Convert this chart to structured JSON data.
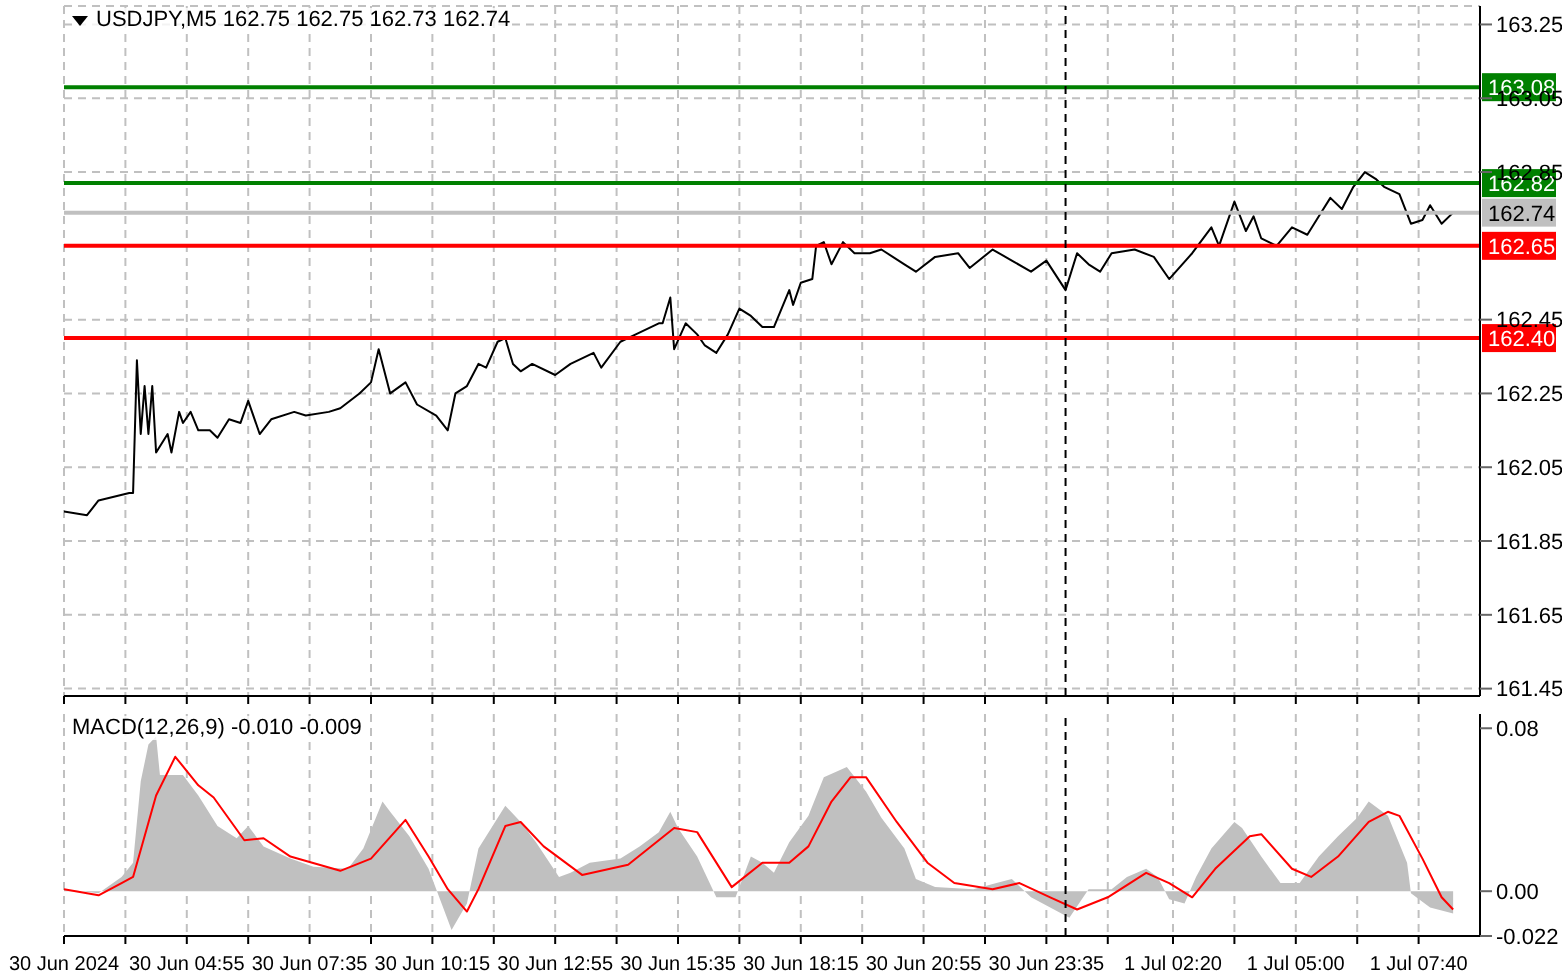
{
  "chart_data": [
    {
      "type": "line",
      "title": "USDJPY,M5 162.75 162.75 162.73 162.74",
      "grid": true,
      "tick_labels": "y",
      "xlim": [
        "2024-06-30T02:15",
        "2024-07-01T09:00"
      ],
      "ylim": [
        161.43,
        163.3
      ],
      "yticks": [
        161.45,
        161.65,
        161.85,
        162.05,
        162.25,
        162.45,
        162.85,
        163.05,
        163.25
      ],
      "xticks": [
        {
          "value": "2024-06-30T02:15",
          "label": null
        },
        {
          "value": "2024-06-30T03:35",
          "label": null
        },
        {
          "value": "2024-06-30T04:55",
          "label": null
        },
        {
          "value": "2024-06-30T06:15",
          "label": null
        },
        {
          "value": "2024-06-30T07:35",
          "label": null
        },
        {
          "value": "2024-06-30T08:55",
          "label": null
        },
        {
          "value": "2024-06-30T10:15",
          "label": null
        },
        {
          "value": "2024-06-30T11:35",
          "label": null
        },
        {
          "value": "2024-06-30T12:55",
          "label": null
        },
        {
          "value": "2024-06-30T14:15",
          "label": null
        },
        {
          "value": "2024-06-30T15:35",
          "label": null
        },
        {
          "value": "2024-06-30T16:55",
          "label": null
        },
        {
          "value": "2024-06-30T18:15",
          "label": null
        },
        {
          "value": "2024-06-30T19:35",
          "label": null
        },
        {
          "value": "2024-06-30T20:55",
          "label": null
        },
        {
          "value": "2024-06-30T22:15",
          "label": null
        },
        {
          "value": "2024-06-30T23:35",
          "label": null
        },
        {
          "value": "2024-07-01T00:55",
          "label": null
        },
        {
          "value": "2024-07-01T02:20",
          "label": null
        },
        {
          "value": "2024-07-01T03:40",
          "label": null
        },
        {
          "value": "2024-07-01T05:00",
          "label": null
        },
        {
          "value": "2024-07-01T06:20",
          "label": null
        },
        {
          "value": "2024-07-01T07:40",
          "label": null
        }
      ],
      "series": [
        {
          "color": "#000000",
          "x": [
            "2024-06-30T02:15",
            "2024-06-30T02:45",
            "2024-06-30T03:00",
            "2024-06-30T03:40",
            "2024-06-30T03:45",
            "2024-06-30T03:50",
            "2024-06-30T03:55",
            "2024-06-30T04:00",
            "2024-06-30T04:05",
            "2024-06-30T04:10",
            "2024-06-30T04:15",
            "2024-06-30T04:30",
            "2024-06-30T04:35",
            "2024-06-30T04:45",
            "2024-06-30T04:50",
            "2024-06-30T05:00",
            "2024-06-30T05:10",
            "2024-06-30T05:25",
            "2024-06-30T05:35",
            "2024-06-30T05:50",
            "2024-06-30T06:05",
            "2024-06-30T06:15",
            "2024-06-30T06:30",
            "2024-06-30T06:45",
            "2024-06-30T07:15",
            "2024-06-30T07:30",
            "2024-06-30T08:00",
            "2024-06-30T08:15",
            "2024-06-30T08:40",
            "2024-06-30T08:55",
            "2024-06-30T09:05",
            "2024-06-30T09:20",
            "2024-06-30T09:40",
            "2024-06-30T09:55",
            "2024-06-30T10:20",
            "2024-06-30T10:35",
            "2024-06-30T10:45",
            "2024-06-30T11:00",
            "2024-06-30T11:15",
            "2024-06-30T11:25",
            "2024-06-30T11:40",
            "2024-06-30T11:50",
            "2024-06-30T12:00",
            "2024-06-30T12:10",
            "2024-06-30T12:25",
            "2024-06-30T12:55",
            "2024-06-30T13:15",
            "2024-06-30T13:45",
            "2024-06-30T13:55",
            "2024-06-30T14:20",
            "2024-06-30T14:40",
            "2024-06-30T15:10",
            "2024-06-30T15:15",
            "2024-06-30T15:25",
            "2024-06-30T15:30",
            "2024-06-30T15:45",
            "2024-06-30T16:00",
            "2024-06-30T16:10",
            "2024-06-30T16:25",
            "2024-06-30T16:40",
            "2024-06-30T16:55",
            "2024-06-30T17:10",
            "2024-06-30T17:25",
            "2024-06-30T17:40",
            "2024-06-30T18:00",
            "2024-06-30T18:05",
            "2024-06-30T18:15",
            "2024-06-30T18:30",
            "2024-06-30T18:35",
            "2024-06-30T18:45",
            "2024-06-30T18:55",
            "2024-06-30T19:10",
            "2024-06-30T19:25",
            "2024-06-30T19:45",
            "2024-06-30T20:00",
            "2024-06-30T20:30",
            "2024-06-30T20:45",
            "2024-06-30T21:10",
            "2024-06-30T21:40",
            "2024-06-30T21:55",
            "2024-06-30T22:25",
            "2024-06-30T22:50",
            "2024-06-30T23:15",
            "2024-06-30T23:35",
            "2024-07-01T00:00",
            "2024-07-01T00:15",
            "2024-07-01T00:30",
            "2024-07-01T00:45",
            "2024-07-01T01:00",
            "2024-07-01T01:30",
            "2024-07-01T01:55",
            "2024-07-01T02:15",
            "2024-07-01T02:45",
            "2024-07-01T03:10",
            "2024-07-01T03:20",
            "2024-07-01T03:40",
            "2024-07-01T03:55",
            "2024-07-01T04:05",
            "2024-07-01T04:15",
            "2024-07-01T04:35",
            "2024-07-01T04:55",
            "2024-07-01T05:15",
            "2024-07-01T05:30",
            "2024-07-01T05:45",
            "2024-07-01T06:00",
            "2024-07-01T06:15",
            "2024-07-01T06:30",
            "2024-07-01T06:45",
            "2024-07-01T06:55",
            "2024-07-01T07:15",
            "2024-07-01T07:30",
            "2024-07-01T07:45",
            "2024-07-01T07:55",
            "2024-07-01T08:10",
            "2024-07-01T08:25"
          ],
          "values": [
            161.93,
            161.92,
            161.96,
            161.98,
            161.98,
            162.34,
            162.14,
            162.27,
            162.14,
            162.27,
            162.09,
            162.14,
            162.09,
            162.2,
            162.17,
            162.2,
            162.15,
            162.15,
            162.13,
            162.18,
            162.17,
            162.23,
            162.14,
            162.18,
            162.2,
            162.19,
            162.2,
            162.21,
            162.25,
            162.28,
            162.37,
            162.25,
            162.28,
            162.22,
            162.19,
            162.15,
            162.25,
            162.27,
            162.33,
            162.32,
            162.39,
            162.4,
            162.33,
            162.31,
            162.33,
            162.3,
            162.33,
            162.36,
            162.32,
            162.39,
            162.41,
            162.44,
            162.44,
            162.51,
            162.37,
            162.44,
            162.41,
            162.38,
            162.36,
            162.41,
            162.48,
            162.46,
            162.43,
            162.43,
            162.53,
            162.49,
            162.55,
            162.56,
            162.65,
            162.66,
            162.6,
            162.66,
            162.63,
            162.63,
            162.64,
            162.6,
            162.58,
            162.62,
            162.63,
            162.59,
            162.64,
            162.61,
            162.58,
            162.61,
            162.53,
            162.63,
            162.6,
            162.58,
            162.63,
            162.64,
            162.62,
            162.56,
            162.63,
            162.7,
            162.65,
            162.77,
            162.69,
            162.73,
            162.67,
            162.65,
            162.7,
            162.68,
            162.73,
            162.78,
            162.75,
            162.81,
            162.85,
            162.83,
            162.81,
            162.79,
            162.71,
            162.72,
            162.76,
            162.71,
            162.74
          ]
        }
      ],
      "ref_lines": [
        {
          "axis": "y",
          "value": 163.08,
          "label": "163.08",
          "color": "#008000"
        },
        {
          "axis": "y",
          "value": 162.82,
          "label": "162.82",
          "color": "#008000"
        },
        {
          "axis": "y",
          "value": 162.74,
          "label": "162.74",
          "color": "#c0c0c0"
        },
        {
          "axis": "y",
          "value": 162.65,
          "label": "162.65",
          "color": "#ff0000"
        },
        {
          "axis": "y",
          "value": 162.4,
          "label": "162.40",
          "color": "#ff0000"
        },
        {
          "axis": "x",
          "value": "2024-07-01T00:00",
          "color": "#000000",
          "line_style": "dashed"
        }
      ]
    },
    {
      "type": "line",
      "title": "MACD(12,26,9) -0.010 -0.009",
      "grid": "x",
      "xlim": [
        "2024-06-30T02:15",
        "2024-07-01T09:00"
      ],
      "ylim": [
        -0.022,
        0.087
      ],
      "yticks": [
        0.08,
        {
          "value": 0,
          "label": "0.00"
        },
        -0.022
      ],
      "xticks": [
        {
          "value": "2024-06-30T02:15",
          "label": "30 Jun 2024"
        },
        {
          "value": "2024-06-30T03:35",
          "label": null
        },
        {
          "value": "2024-06-30T04:55",
          "label": "30 Jun 04:55"
        },
        {
          "value": "2024-06-30T06:15",
          "label": null
        },
        {
          "value": "2024-06-30T07:35",
          "label": "30 Jun 07:35"
        },
        {
          "value": "2024-06-30T08:55",
          "label": null
        },
        {
          "value": "2024-06-30T10:15",
          "label": "30 Jun 10:15"
        },
        {
          "value": "2024-06-30T11:35",
          "label": null
        },
        {
          "value": "2024-06-30T12:55",
          "label": "30 Jun 12:55"
        },
        {
          "value": "2024-06-30T14:15",
          "label": null
        },
        {
          "value": "2024-06-30T15:35",
          "label": "30 Jun 15:35"
        },
        {
          "value": "2024-06-30T16:55",
          "label": null
        },
        {
          "value": "2024-06-30T18:15",
          "label": "30 Jun 18:15"
        },
        {
          "value": "2024-06-30T19:35",
          "label": null
        },
        {
          "value": "2024-06-30T20:55",
          "label": "30 Jun 20:55"
        },
        {
          "value": "2024-06-30T22:15",
          "label": null
        },
        {
          "value": "2024-06-30T23:35",
          "label": "30 Jun 23:35"
        },
        {
          "value": "2024-07-01T00:55",
          "label": null
        },
        {
          "value": "2024-07-01T02:20",
          "label": "1 Jul 02:20"
        },
        {
          "value": "2024-07-01T03:40",
          "label": null
        },
        {
          "value": "2024-07-01T05:00",
          "label": "1 Jul 05:00"
        },
        {
          "value": "2024-07-01T06:20",
          "label": null
        },
        {
          "value": "2024-07-01T07:40",
          "label": "1 Jul 07:40"
        }
      ],
      "series": [
        {
          "type": "area",
          "color": "#c0c0c0",
          "x": [
            "2024-06-30T02:15",
            "2024-06-30T03:00",
            "2024-06-30T03:30",
            "2024-06-30T03:45",
            "2024-06-30T03:55",
            "2024-06-30T04:05",
            "2024-06-30T04:15",
            "2024-06-30T04:20",
            "2024-06-30T04:50",
            "2024-06-30T05:10",
            "2024-06-30T05:35",
            "2024-06-30T06:00",
            "2024-06-30T06:15",
            "2024-06-30T06:35",
            "2024-06-30T07:10",
            "2024-06-30T07:40",
            "2024-06-30T08:25",
            "2024-06-30T08:45",
            "2024-06-30T09:10",
            "2024-06-30T09:20",
            "2024-06-30T09:45",
            "2024-06-30T10:10",
            "2024-06-30T10:20",
            "2024-06-30T10:40",
            "2024-06-30T11:00",
            "2024-06-30T11:15",
            "2024-06-30T11:50",
            "2024-06-30T12:10",
            "2024-06-30T12:30",
            "2024-06-30T13:00",
            "2024-06-30T13:15",
            "2024-06-30T13:40",
            "2024-06-30T14:20",
            "2024-06-30T14:45",
            "2024-06-30T15:10",
            "2024-06-30T15:25",
            "2024-06-30T15:35",
            "2024-06-30T16:00",
            "2024-06-30T16:25",
            "2024-06-30T16:50",
            "2024-06-30T17:10",
            "2024-06-30T17:25",
            "2024-06-30T17:40",
            "2024-06-30T18:00",
            "2024-06-30T18:25",
            "2024-06-30T18:45",
            "2024-06-30T19:15",
            "2024-06-30T19:40",
            "2024-06-30T20:00",
            "2024-06-30T20:30",
            "2024-06-30T20:45",
            "2024-06-30T21:10",
            "2024-06-30T22:00",
            "2024-06-30T22:30",
            "2024-06-30T22:50",
            "2024-06-30T23:15",
            "2024-06-30T23:40",
            "2024-07-01T00:05",
            "2024-07-01T00:30",
            "2024-07-01T01:00",
            "2024-07-01T01:20",
            "2024-07-01T01:45",
            "2024-07-01T02:00",
            "2024-07-01T02:15",
            "2024-07-01T02:35",
            "2024-07-01T02:50",
            "2024-07-01T03:10",
            "2024-07-01T03:40",
            "2024-07-01T03:50",
            "2024-07-01T04:15",
            "2024-07-01T04:40",
            "2024-07-01T05:05",
            "2024-07-01T05:30",
            "2024-07-01T05:55",
            "2024-07-01T06:20",
            "2024-07-01T06:35",
            "2024-07-01T07:00",
            "2024-07-01T07:25",
            "2024-07-01T07:30",
            "2024-07-01T07:55",
            "2024-07-01T08:25"
          ],
          "values": [
            0.001,
            -0.001,
            0.007,
            0.014,
            0.054,
            0.072,
            0.076,
            0.057,
            0.057,
            0.047,
            0.032,
            0.026,
            0.032,
            0.022,
            0.016,
            0.012,
            0.011,
            0.021,
            0.044,
            0.039,
            0.027,
            0.011,
            0.001,
            -0.019,
            -0.006,
            0.021,
            0.042,
            0.034,
            0.024,
            0.007,
            0.009,
            0.014,
            0.016,
            0.022,
            0.029,
            0.039,
            0.031,
            0.017,
            -0.003,
            -0.003,
            0.017,
            0.014,
            0.009,
            0.024,
            0.037,
            0.056,
            0.061,
            0.049,
            0.036,
            0.021,
            0.006,
            0.002,
            0.001,
            0.004,
            0.006,
            -0.003,
            -0.008,
            -0.013,
            0.001,
            0.001,
            0.007,
            0.011,
            0.007,
            -0.004,
            -0.006,
            0.007,
            0.021,
            0.034,
            0.031,
            0.017,
            0.004,
            0.004,
            0.017,
            0.027,
            0.036,
            0.044,
            0.037,
            0.014,
            -0.001,
            -0.008,
            -0.011
          ]
        },
        {
          "color": "#ff0000",
          "x": [
            "2024-06-30T02:15",
            "2024-06-30T03:00",
            "2024-06-30T03:30",
            "2024-06-30T03:45",
            "2024-06-30T04:15",
            "2024-06-30T04:40",
            "2024-06-30T05:10",
            "2024-06-30T05:30",
            "2024-06-30T06:10",
            "2024-06-30T06:35",
            "2024-06-30T07:10",
            "2024-06-30T08:15",
            "2024-06-30T08:55",
            "2024-06-30T09:40",
            "2024-06-30T10:10",
            "2024-06-30T10:35",
            "2024-06-30T11:00",
            "2024-06-30T11:15",
            "2024-06-30T11:50",
            "2024-06-30T12:10",
            "2024-06-30T12:40",
            "2024-06-30T13:30",
            "2024-06-30T14:30",
            "2024-06-30T15:30",
            "2024-06-30T16:00",
            "2024-06-30T16:45",
            "2024-06-30T17:25",
            "2024-06-30T18:00",
            "2024-06-30T18:25",
            "2024-06-30T18:55",
            "2024-06-30T19:20",
            "2024-06-30T19:40",
            "2024-06-30T20:20",
            "2024-06-30T21:00",
            "2024-06-30T21:35",
            "2024-06-30T22:25",
            "2024-06-30T23:00",
            "2024-06-30T23:40",
            "2024-07-01T00:15",
            "2024-07-01T00:55",
            "2024-07-01T01:45",
            "2024-07-01T02:15",
            "2024-07-01T02:45",
            "2024-07-01T03:15",
            "2024-07-01T04:00",
            "2024-07-01T04:15",
            "2024-07-01T04:55",
            "2024-07-01T05:20",
            "2024-07-01T05:55",
            "2024-07-01T06:35",
            "2024-07-01T07:00",
            "2024-07-01T07:15",
            "2024-07-01T07:45",
            "2024-07-01T08:10",
            "2024-07-01T08:25"
          ],
          "values": [
            0.001,
            -0.002,
            0.004,
            0.007,
            0.047,
            0.066,
            0.052,
            0.046,
            0.025,
            0.026,
            0.017,
            0.01,
            0.016,
            0.035,
            0.017,
            0.001,
            -0.01,
            0.001,
            0.032,
            0.034,
            0.022,
            0.008,
            0.013,
            0.031,
            0.029,
            0.002,
            0.014,
            0.014,
            0.022,
            0.044,
            0.056,
            0.056,
            0.034,
            0.014,
            0.004,
            0.001,
            0.004,
            -0.003,
            -0.009,
            -0.003,
            0.009,
            0.004,
            -0.003,
            0.011,
            0.027,
            0.028,
            0.011,
            0.007,
            0.017,
            0.034,
            0.039,
            0.037,
            0.016,
            -0.003,
            -0.009
          ]
        }
      ],
      "ref_lines": [
        {
          "axis": "x",
          "value": "2024-07-01T00:00",
          "color": "#000000",
          "line_style": "dashed"
        }
      ]
    }
  ]
}
